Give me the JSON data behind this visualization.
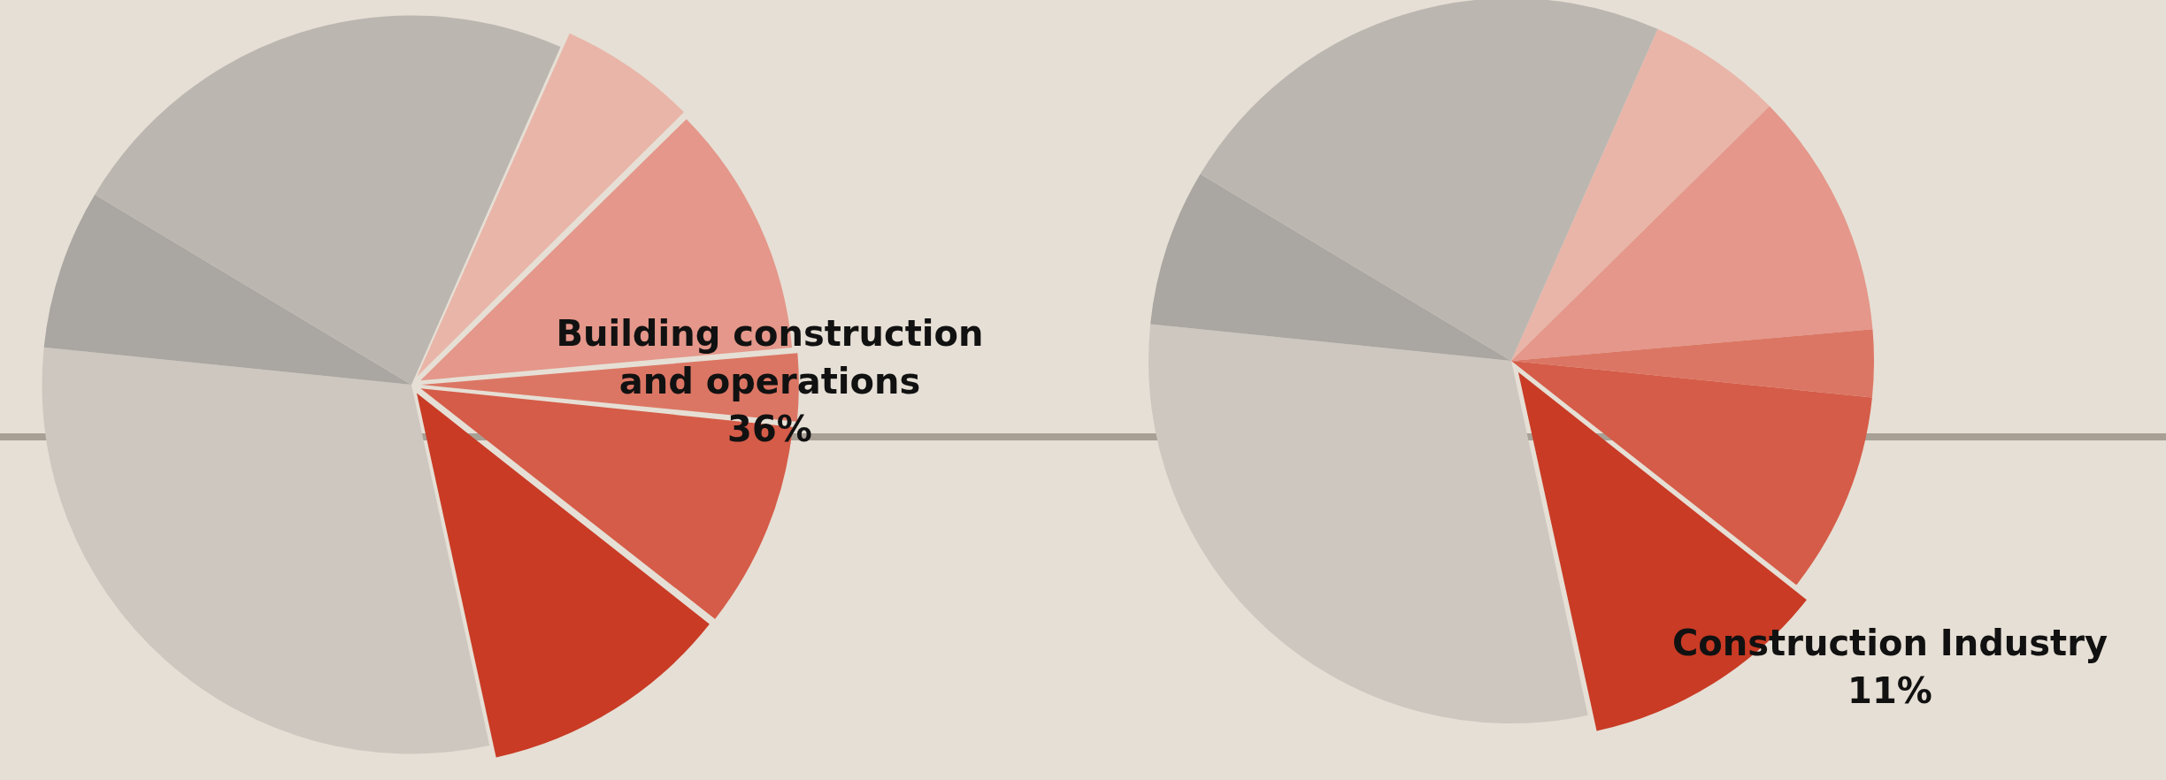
{
  "chart_data": [
    {
      "type": "pie",
      "categories": [
        null,
        null,
        null,
        null,
        null,
        null,
        null,
        null
      ],
      "values": [
        6,
        11,
        3,
        9,
        11,
        30,
        7,
        23
      ],
      "colors": [
        "#e9b5a8",
        "#e4978a",
        "#dc7664",
        "#d55c48",
        "#c93b25",
        "#cdc7c0",
        "#aaa6a1",
        "#bbb6b0"
      ],
      "legend": false,
      "annotations": [
        "Building construction\nand operations\n36%"
      ]
    },
    {
      "type": "pie",
      "categories": [
        null,
        null,
        null,
        null,
        null,
        null,
        null,
        null
      ],
      "values": [
        6,
        11,
        3,
        9,
        11,
        30,
        7,
        23
      ],
      "colors": [
        "#e9b5a8",
        "#e4978a",
        "#dc7664",
        "#d55c48",
        "#c93b25",
        "#cdc7c0",
        "#aaa6a1",
        "#bbb6b0"
      ],
      "legend": false,
      "annotations": [
        "Construction Industry\n11%"
      ]
    }
  ]
}
